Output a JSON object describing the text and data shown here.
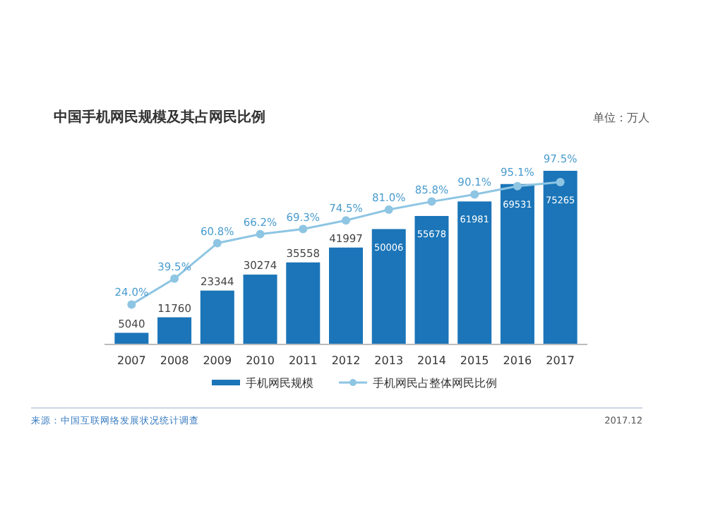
{
  "chart_data": {
    "type": "bar",
    "title": "中国手机网民规模及其占网民比例",
    "subtitle": "单位：万人",
    "categories": [
      "2007",
      "2008",
      "2009",
      "2010",
      "2011",
      "2012",
      "2013",
      "2014",
      "2015",
      "2016",
      "2017"
    ],
    "series": [
      {
        "name": "手机网民规模",
        "color": "#1b75b8",
        "values": [
          5040,
          11760,
          23344,
          30274,
          35558,
          41997,
          50006,
          55678,
          61981,
          69531,
          75265
        ],
        "value_labels": [
          "5040",
          "11760",
          "23344",
          "30274",
          "35558",
          "41997",
          "50006",
          "55678",
          "61981",
          "69531",
          "75265"
        ]
      },
      {
        "name": "手机网民占整体网民比例",
        "type": "line",
        "axis": "y2",
        "color": "#8ec5e3",
        "values": [
          24.0,
          39.5,
          60.8,
          66.2,
          69.3,
          74.5,
          81.0,
          85.8,
          90.1,
          95.1,
          97.5
        ],
        "value_labels": [
          "24.0%",
          "39.5%",
          "60.8%",
          "66.2%",
          "69.3%",
          "74.5%",
          "81.0%",
          "85.8%",
          "90.1%",
          "95.1%",
          "97.5%"
        ]
      }
    ],
    "legend": "bottom",
    "marker": "circle",
    "annotations": [
      "来源：中国互联网络发展状况统计调查",
      "2017.12"
    ]
  }
}
